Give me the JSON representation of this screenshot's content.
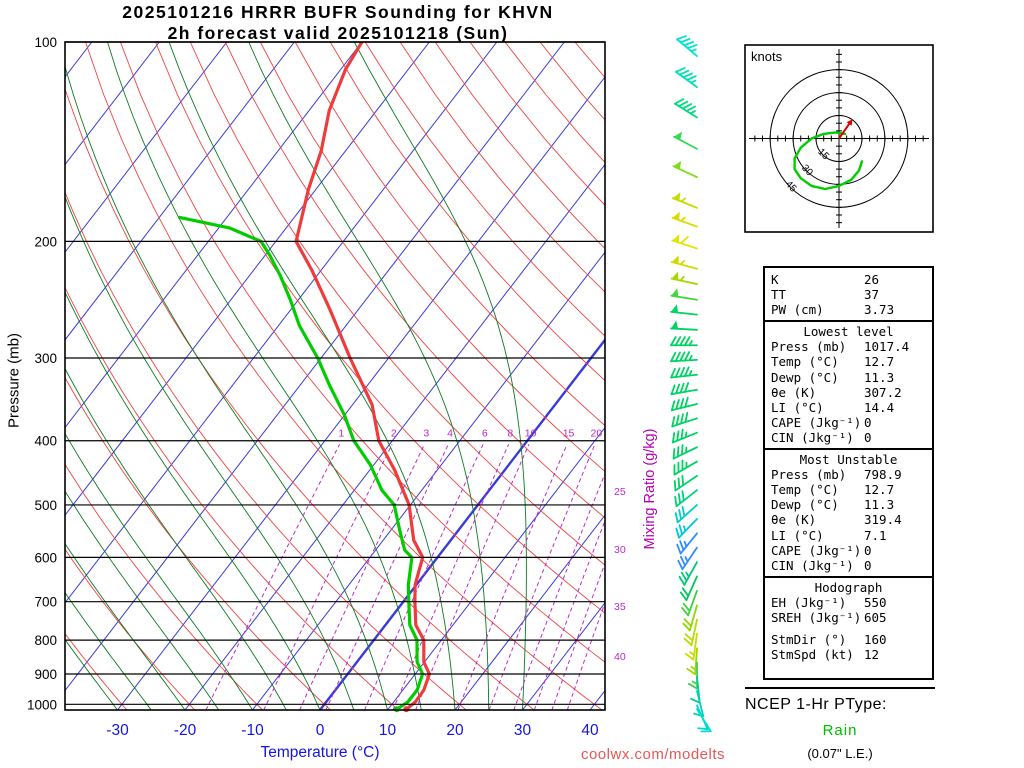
{
  "title_line1": "2025101216 HRRR BUFR Sounding for KHVN",
  "title_line2": "2h forecast valid 2025101218 (Sun)",
  "watermark": "coolwx.com/modelts",
  "axes": {
    "pressure_label": "Pressure (mb)",
    "temperature_label": "Temperature (°C)",
    "mixing_ratio_label": "Mixing Ratio (g/kg)",
    "pressure_ticks": [
      100,
      200,
      300,
      400,
      500,
      600,
      700,
      800,
      900,
      1000
    ],
    "temperature_ticks": [
      -30,
      -20,
      -10,
      0,
      10,
      20,
      30,
      40
    ],
    "mixing_ratio_ticks_top": [
      1,
      2,
      3,
      4,
      6,
      8,
      10,
      15,
      20
    ],
    "mixing_ratio_ticks_right": [
      25,
      30,
      35,
      40
    ]
  },
  "chart_data": {
    "type": "skew-t log-p sounding",
    "pressure_range_mb": [
      100,
      1020
    ],
    "temperature_axis_range_c": [
      -40,
      45
    ],
    "isotherm_step_c": 10,
    "dry_adiabat_step_c": 10,
    "moist_adiabat_step_c": 5,
    "temperature_profile": [
      [
        100,
        -70
      ],
      [
        110,
        -69.3
      ],
      [
        127,
        -67
      ],
      [
        146,
        -63.6
      ],
      [
        167,
        -61.1
      ],
      [
        200,
        -57
      ],
      [
        221,
        -51.4
      ],
      [
        254,
        -44.1
      ],
      [
        300,
        -35.7
      ],
      [
        353,
        -27.1
      ],
      [
        400,
        -22
      ],
      [
        443,
        -16.3
      ],
      [
        500,
        -10.2
      ],
      [
        565,
        -5.5
      ],
      [
        600,
        -2.2
      ],
      [
        660,
        -0.2
      ],
      [
        700,
        1.7
      ],
      [
        759,
        4.5
      ],
      [
        800,
        7.4
      ],
      [
        863,
        9.9
      ],
      [
        900,
        12.1
      ],
      [
        951,
        13.1
      ],
      [
        992,
        13.2
      ],
      [
        1017.4,
        12.7
      ]
    ],
    "dewpoint_profile": [
      [
        184,
        -77
      ],
      [
        191,
        -68.3
      ],
      [
        200,
        -62.2
      ],
      [
        210,
        -59.3
      ],
      [
        225,
        -55.5
      ],
      [
        245,
        -51.2
      ],
      [
        268,
        -46.9
      ],
      [
        300,
        -40.5
      ],
      [
        330,
        -35.6
      ],
      [
        366,
        -30
      ],
      [
        400,
        -25.7
      ],
      [
        435,
        -20.5
      ],
      [
        475,
        -15.9
      ],
      [
        500,
        -12.4
      ],
      [
        546,
        -8.7
      ],
      [
        585,
        -5.7
      ],
      [
        600,
        -3.8
      ],
      [
        660,
        -1.2
      ],
      [
        700,
        0.8
      ],
      [
        759,
        3.6
      ],
      [
        800,
        6.4
      ],
      [
        863,
        8.9
      ],
      [
        900,
        11.1
      ],
      [
        951,
        12.1
      ],
      [
        992,
        12.1
      ],
      [
        1017.4,
        11.3
      ]
    ],
    "wind_barbs": [
      {
        "p": 105,
        "spd": 45,
        "dir": 310,
        "color": "#00e2d2"
      },
      {
        "p": 117,
        "spd": 45,
        "dir": 306,
        "color": "#00e2b4"
      },
      {
        "p": 130,
        "spd": 45,
        "dir": 302,
        "color": "#00dc82"
      },
      {
        "p": 145,
        "spd": 50,
        "dir": 298,
        "color": "#30dc50"
      },
      {
        "p": 160,
        "spd": 50,
        "dir": 295,
        "color": "#7cde10"
      },
      {
        "p": 178,
        "spd": 55,
        "dir": 292,
        "color": "#c8dc00"
      },
      {
        "p": 190,
        "spd": 55,
        "dir": 290,
        "color": "#dcdc00"
      },
      {
        "p": 205,
        "spd": 60,
        "dir": 288,
        "color": "#e4e400"
      },
      {
        "p": 220,
        "spd": 55,
        "dir": 285,
        "color": "#d2d800"
      },
      {
        "p": 232,
        "spd": 55,
        "dir": 282,
        "color": "#a6d800"
      },
      {
        "p": 245,
        "spd": 50,
        "dir": 279,
        "color": "#46d43c"
      },
      {
        "p": 258,
        "spd": 50,
        "dir": 276,
        "color": "#00d264"
      },
      {
        "p": 272,
        "spd": 50,
        "dir": 273,
        "color": "#00d264"
      },
      {
        "p": 287,
        "spd": 45,
        "dir": 270,
        "color": "#00d264"
      },
      {
        "p": 302,
        "spd": 45,
        "dir": 267,
        "color": "#00d264"
      },
      {
        "p": 318,
        "spd": 45,
        "dir": 264,
        "color": "#00d264"
      },
      {
        "p": 335,
        "spd": 40,
        "dir": 260,
        "color": "#00d264"
      },
      {
        "p": 352,
        "spd": 40,
        "dir": 256,
        "color": "#00d264"
      },
      {
        "p": 370,
        "spd": 40,
        "dir": 252,
        "color": "#00d264"
      },
      {
        "p": 389,
        "spd": 35,
        "dir": 248,
        "color": "#00d264"
      },
      {
        "p": 409,
        "spd": 35,
        "dir": 244,
        "color": "#00d264"
      },
      {
        "p": 430,
        "spd": 35,
        "dir": 240,
        "color": "#00d264"
      },
      {
        "p": 452,
        "spd": 30,
        "dir": 236,
        "color": "#00d264"
      },
      {
        "p": 475,
        "spd": 30,
        "dir": 232,
        "color": "#00d27a"
      },
      {
        "p": 500,
        "spd": 30,
        "dir": 228,
        "color": "#00cccc"
      },
      {
        "p": 525,
        "spd": 25,
        "dir": 224,
        "color": "#00c8dc"
      },
      {
        "p": 552,
        "spd": 25,
        "dir": 219,
        "color": "#2e8cff"
      },
      {
        "p": 580,
        "spd": 25,
        "dir": 214,
        "color": "#2e8cff"
      },
      {
        "p": 610,
        "spd": 25,
        "dir": 209,
        "color": "#00c878"
      },
      {
        "p": 641,
        "spd": 20,
        "dir": 204,
        "color": "#00c85a"
      },
      {
        "p": 674,
        "spd": 20,
        "dir": 200,
        "color": "#3cd23c"
      },
      {
        "p": 709,
        "spd": 20,
        "dir": 196,
        "color": "#8cd800"
      },
      {
        "p": 745,
        "spd": 20,
        "dir": 192,
        "color": "#b4dc00"
      },
      {
        "p": 783,
        "spd": 15,
        "dir": 188,
        "color": "#c8dc00"
      },
      {
        "p": 823,
        "spd": 15,
        "dir": 184,
        "color": "#a0d800"
      },
      {
        "p": 865,
        "spd": 15,
        "dir": 180,
        "color": "#46d050"
      },
      {
        "p": 909,
        "spd": 12,
        "dir": 174,
        "color": "#00cc8c"
      },
      {
        "p": 955,
        "spd": 10,
        "dir": 166,
        "color": "#00d2b4"
      },
      {
        "p": 1004,
        "spd": 10,
        "dir": 156,
        "color": "#00d8c8"
      },
      {
        "p": 1017,
        "spd": 10,
        "dir": 148,
        "color": "#00dcd4"
      }
    ],
    "hodograph": {
      "label": "knots",
      "ring_values": [
        15,
        30,
        45
      ],
      "trace_uv_kt": [
        [
          4,
          3
        ],
        [
          -2,
          4
        ],
        [
          -10,
          3
        ],
        [
          -18,
          0
        ],
        [
          -25,
          -6
        ],
        [
          -29,
          -13
        ],
        [
          -29,
          -20
        ],
        [
          -25,
          -26
        ],
        [
          -18,
          -31
        ],
        [
          -9,
          -33
        ],
        [
          0,
          -31
        ],
        [
          8,
          -27
        ],
        [
          13,
          -21
        ],
        [
          15,
          -15
        ]
      ],
      "storm_motion_uv": [
        7,
        10
      ]
    },
    "colors": {
      "isotherm": "#3a3ad8",
      "dry_adiabat": "#ee4444",
      "moist_adiabat": "#0c7a22",
      "mixing_ratio": "#c028c8",
      "temperature_trace": "#ee3b3b",
      "dewpoint_trace": "#00cc00",
      "temp_axis": "#1414e0"
    }
  },
  "stats": {
    "indices": [
      [
        "K",
        "26"
      ],
      [
        "TT",
        "37"
      ],
      [
        "PW (cm)",
        "3.73"
      ]
    ],
    "sections": [
      {
        "header": "Lowest level",
        "rows": [
          [
            "Press (mb)",
            "1017.4"
          ],
          [
            "Temp (°C)",
            "12.7"
          ],
          [
            "Dewp (°C)",
            "11.3"
          ],
          [
            "θe (K)",
            "307.2"
          ],
          [
            "LI (°C)",
            "14.4"
          ],
          [
            "CAPE (Jkg⁻¹)",
            "0"
          ],
          [
            "CIN (Jkg⁻¹)",
            "0"
          ]
        ]
      },
      {
        "header": "Most Unstable",
        "rows": [
          [
            "Press (mb)",
            "798.9"
          ],
          [
            "Temp (°C)",
            "12.7"
          ],
          [
            "Dewp (°C)",
            "11.3"
          ],
          [
            "θe (K)",
            "319.4"
          ],
          [
            "LI (°C)",
            "7.1"
          ],
          [
            "CAPE (Jkg⁻¹)",
            "0"
          ],
          [
            "CIN (Jkg⁻¹)",
            "0"
          ]
        ]
      },
      {
        "header": "Hodograph",
        "rows": [
          [
            "EH (Jkg⁻¹)",
            "550"
          ],
          [
            "SREH (Jkg⁻¹)",
            "605"
          ],
          [
            "StmDir (°)",
            "160"
          ],
          [
            "StmSpd (kt)",
            "12"
          ]
        ]
      }
    ]
  },
  "ptype": {
    "title": "NCEP 1-Hr PType:",
    "value": "Rain",
    "extra": "(0.07\" L.E.)",
    "value_color": "#00bb00"
  }
}
